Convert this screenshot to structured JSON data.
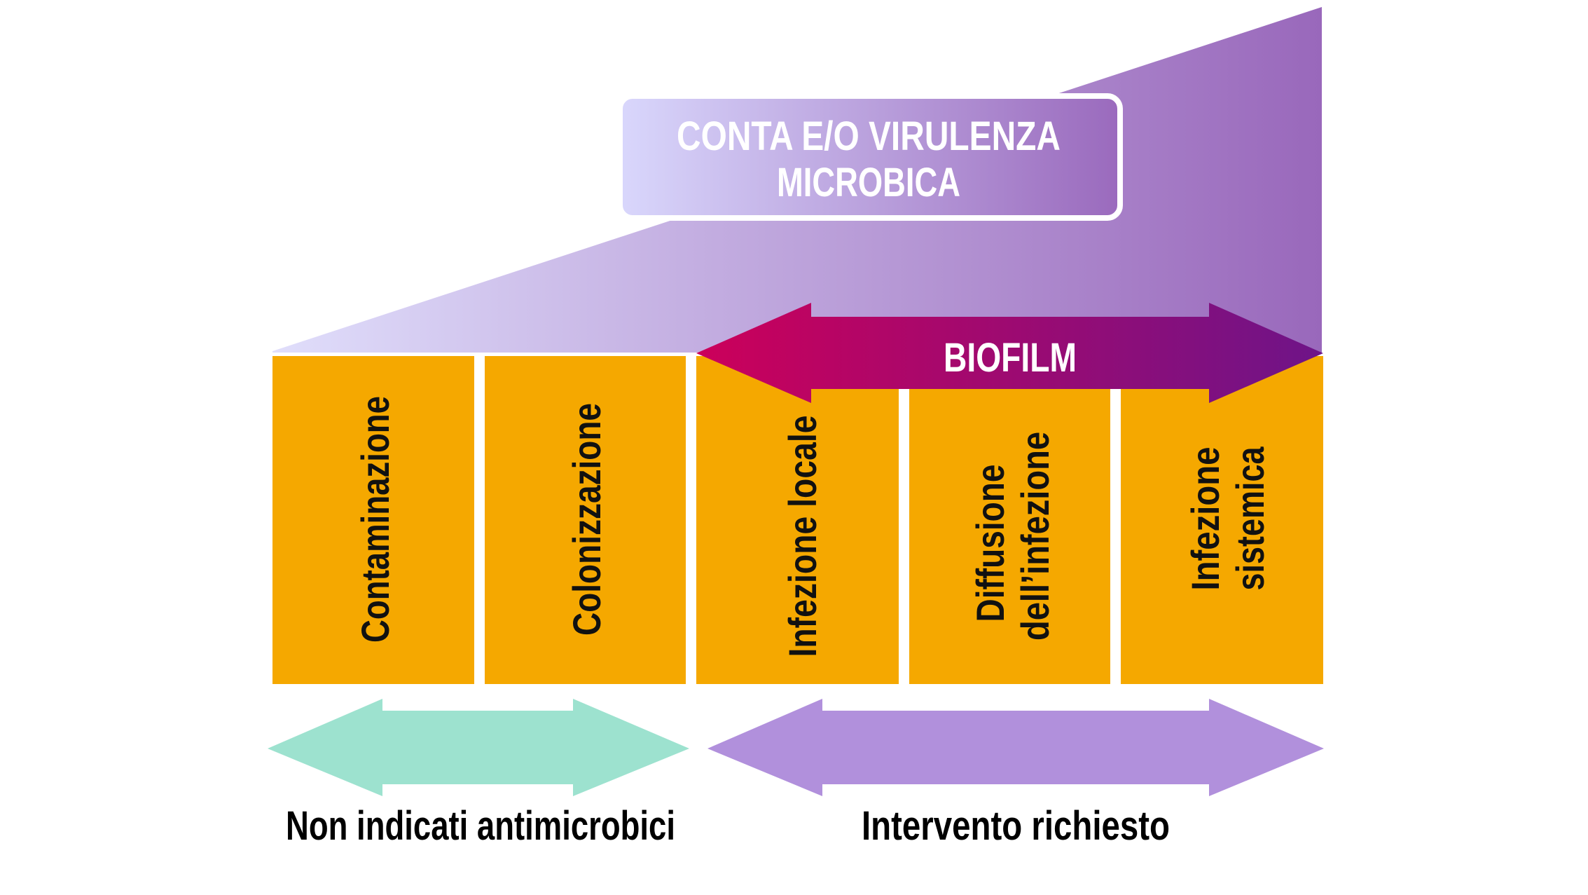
{
  "header": {
    "line1": "CONTA E/O VIRULENZA",
    "line2": "MICROBICA"
  },
  "biofilm": {
    "label": "BIOFILM"
  },
  "stages": [
    {
      "lines": [
        "Contaminazione"
      ]
    },
    {
      "lines": [
        "Colonizzazione"
      ]
    },
    {
      "lines": [
        "Infezione locale"
      ]
    },
    {
      "lines": [
        "Diffusione",
        "dell’infezione"
      ]
    },
    {
      "lines": [
        "Infezione",
        "sistemica"
      ]
    }
  ],
  "bottom": {
    "left_label": "Non indicati antimicrobici",
    "right_label": "Intervento richiesto"
  },
  "colors": {
    "stage_box": "#f5a800",
    "ramp_start": "#dedcfa",
    "ramp_end": "#9968bb",
    "biofilm_start": "#cc005a",
    "biofilm_end": "#6e1488",
    "no_antimicrobial_arrow": "#9de2cf",
    "intervention_arrow": "#b190dc"
  }
}
